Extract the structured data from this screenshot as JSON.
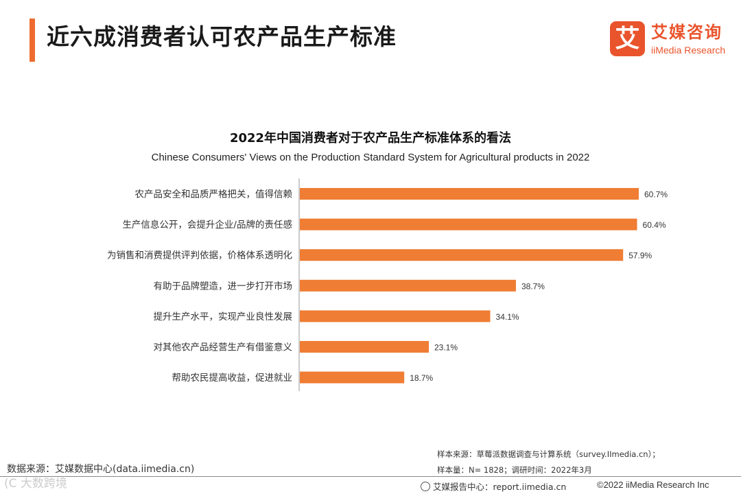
{
  "header": {
    "title": "近六成消费者认可农产品生产标准"
  },
  "logo": {
    "mark": "艾",
    "name_cn": "艾媒咨询",
    "name_en": "iiMedia Research"
  },
  "colors": {
    "accent": "#ee6b2f",
    "bar": "#ef7d34"
  },
  "chart_data": {
    "type": "bar",
    "orientation": "horizontal",
    "title": "2022年中国消费者对于农产品生产标准体系的看法",
    "subtitle": "Chinese Consumers' Views on the Production Standard System for Agricultural products in 2022",
    "categories": [
      "农产品安全和品质严格把关，值得信赖",
      "生产信息公开，会提升企业/品牌的责任感",
      "为销售和消费提供评判依据，价格体系透明化",
      "有助于品牌塑造，进一步打开市场",
      "提升生产水平，实现产业良性发展",
      "对其他农产品经营生产有借鉴意义",
      "帮助农民提高收益，促进就业"
    ],
    "values": [
      60.7,
      60.4,
      57.9,
      38.7,
      34.1,
      23.1,
      18.7
    ],
    "value_labels": [
      "60.7%",
      "60.4%",
      "57.9%",
      "38.7%",
      "34.1%",
      "23.1%",
      "18.7%"
    ],
    "unit": "%",
    "xlim": [
      0,
      60.7
    ]
  },
  "footer": {
    "source": "数据来源：艾媒数据中心(data.iimedia.cn)",
    "watermark": "(C 大数跨境",
    "sample_source": "样本来源：草莓派数据调查与计算系统（survey.IImedia.cn）；",
    "sample_size": "样本量：N= 1828；调研时间：2022年3月",
    "report_center": "艾媒报告中心：report.iimedia.cn",
    "copyright": "©2022  iiMedia Research  Inc"
  }
}
